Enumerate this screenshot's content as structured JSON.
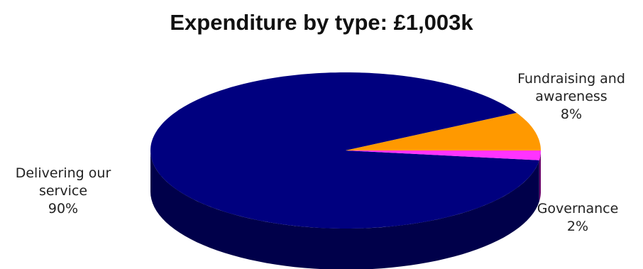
{
  "chart_data": {
    "type": "pie",
    "title": "Expenditure by type: £1,003k",
    "slices": [
      {
        "label_lines": [
          "Delivering our",
          "service"
        ],
        "value": 90,
        "value_label": "90%",
        "color": "#00007f",
        "side_color": "#00004a"
      },
      {
        "label_lines": [
          "Fundraising and",
          "awareness"
        ],
        "value": 8,
        "value_label": "8%",
        "color": "#ff9900",
        "side_color": "#b36b00"
      },
      {
        "label_lines": [
          "Governance"
        ],
        "value": 2,
        "value_label": "2%",
        "color": "#ff33ff",
        "side_color": "#660066"
      }
    ]
  }
}
